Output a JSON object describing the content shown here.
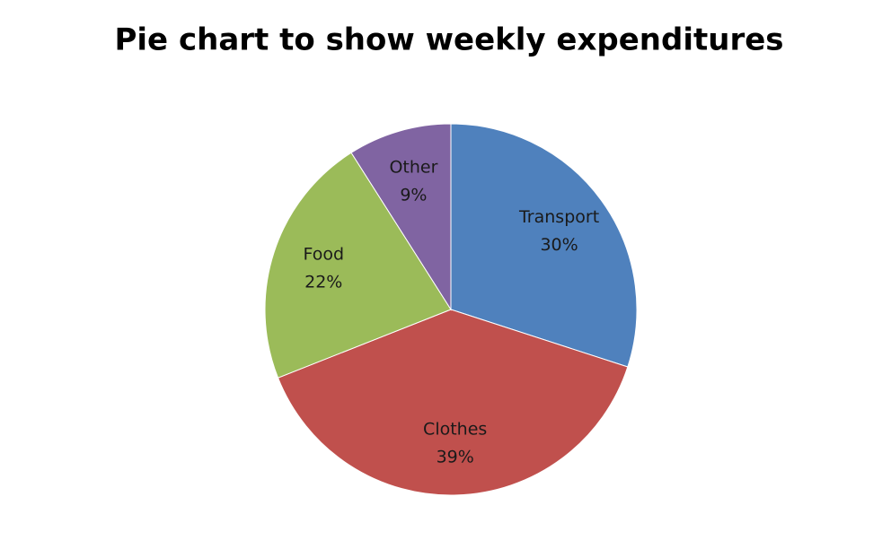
{
  "chart_data": {
    "type": "pie",
    "title": "Pie chart to show weekly expenditures",
    "categories": [
      "Transport",
      "Clothes",
      "Food",
      "Other"
    ],
    "values": [
      30,
      39,
      22,
      9
    ],
    "value_labels": [
      "30%",
      "39%",
      "22%",
      "9%"
    ],
    "colors": [
      "#4f81bd",
      "#c0504d",
      "#9bbb59",
      "#8064a2"
    ]
  }
}
